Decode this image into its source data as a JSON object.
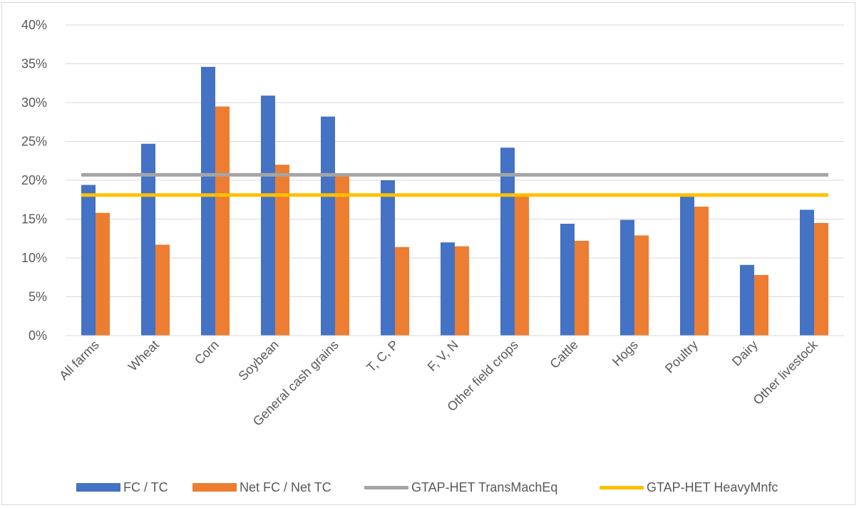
{
  "chart_data": {
    "type": "bar",
    "categories": [
      "All farms",
      "Wheat",
      "Corn",
      "Soybean",
      "General cash grains",
      "T, C, P",
      "F, V, N",
      "Other field crops",
      "Cattle",
      "Hogs",
      "Poultry",
      "Dairy",
      "Other livestock"
    ],
    "series": [
      {
        "name": "FC / TC",
        "type": "bar",
        "color": "#4472c4",
        "values": [
          19.4,
          24.7,
          34.6,
          30.9,
          28.2,
          20.0,
          12.0,
          24.2,
          14.4,
          14.9,
          18.0,
          9.1,
          16.2
        ]
      },
      {
        "name": "Net FC / Net TC",
        "type": "bar",
        "color": "#ed7d31",
        "values": [
          15.8,
          11.7,
          29.5,
          22.0,
          20.8,
          11.4,
          11.5,
          18.2,
          12.2,
          12.9,
          16.6,
          7.8,
          14.5
        ]
      },
      {
        "name": "GTAP-HET TransMachEq",
        "type": "line",
        "color": "#a5a5a5",
        "value": 20.7
      },
      {
        "name": "GTAP-HET HeavyMnfc",
        "type": "line",
        "color": "#ffc000",
        "value": 18.1
      }
    ],
    "yticks": [
      "0%",
      "5%",
      "10%",
      "15%",
      "20%",
      "25%",
      "30%",
      "35%",
      "40%"
    ],
    "ylim": [
      0,
      40
    ],
    "grid": true,
    "legend_position": "bottom"
  }
}
